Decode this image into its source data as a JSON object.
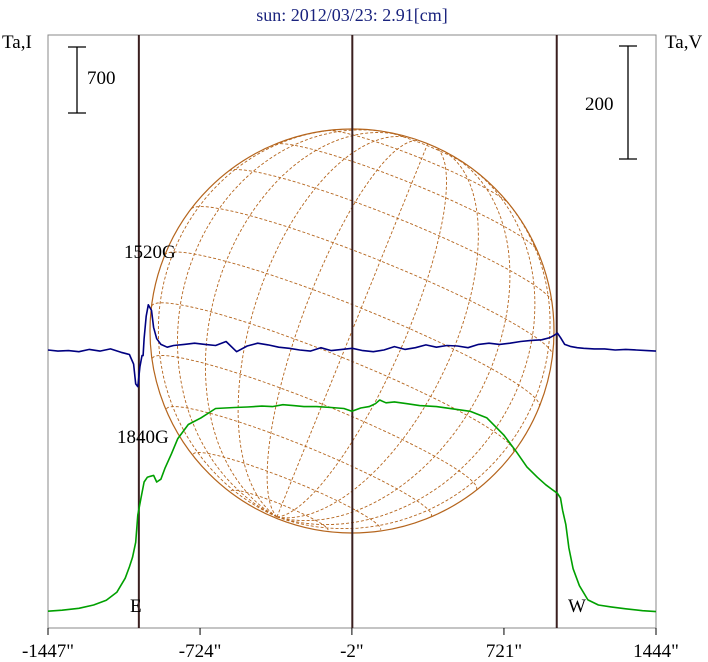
{
  "chart_data": {
    "type": "line",
    "title": "sun: 2012/03/23: 2.91[cm]",
    "ylabel_left": "Ta,I",
    "ylabel_right": "Ta,V",
    "x_ticks": [
      "-1447\"",
      "-724\"",
      "-2\"",
      "721\"",
      "1444\""
    ],
    "x_tick_values": [
      -1447,
      -724,
      -2,
      721,
      1444
    ],
    "xlim": [
      -1447,
      1444
    ],
    "scale_bar_I": "700",
    "scale_bar_V": "200",
    "limb_labels": {
      "east": "E",
      "west": "W"
    },
    "limb_x": [
      -1015,
      0,
      972
    ],
    "annotations": [
      "1520G",
      "1840G"
    ],
    "grid": false,
    "series": [
      {
        "name": "I",
        "color": "#00a000",
        "x": [
          -1447,
          -1380,
          -1300,
          -1230,
          -1170,
          -1120,
          -1080,
          -1060,
          -1045,
          -1030,
          -1020,
          -1005,
          -990,
          -975,
          -960,
          -945,
          -930,
          -910,
          -890,
          -860,
          -830,
          -780,
          -720,
          -650,
          -560,
          -500,
          -430,
          -380,
          -330,
          -280,
          -230,
          -170,
          -100,
          -40,
          -2,
          40,
          80,
          110,
          130,
          160,
          200,
          260,
          320,
          400,
          480,
          560,
          640,
          720,
          780,
          830,
          880,
          920,
          950,
          975,
          990,
          1000,
          1015,
          1030,
          1050,
          1080,
          1120,
          1170,
          1230,
          1300,
          1380,
          1444
        ],
        "values": [
          30,
          40,
          60,
          95,
          145,
          230,
          380,
          500,
          600,
          760,
          1050,
          1230,
          1400,
          1450,
          1460,
          1470,
          1400,
          1430,
          1550,
          1700,
          1860,
          2010,
          2080,
          2180,
          2190,
          2195,
          2205,
          2200,
          2220,
          2210,
          2200,
          2200,
          2190,
          2180,
          2150,
          2185,
          2200,
          2230,
          2270,
          2240,
          2250,
          2230,
          2210,
          2200,
          2175,
          2150,
          2080,
          1900,
          1720,
          1560,
          1450,
          1370,
          1320,
          1280,
          1230,
          1100,
          950,
          700,
          480,
          300,
          150,
          95,
          75,
          55,
          35,
          25
        ]
      },
      {
        "name": "V",
        "color": "#000080",
        "x": [
          -1447,
          -1400,
          -1350,
          -1300,
          -1250,
          -1200,
          -1150,
          -1100,
          -1060,
          -1040,
          -1030,
          -1020,
          -1010,
          -1000,
          -995,
          -990,
          -980,
          -970,
          -955,
          -945,
          -930,
          -910,
          -880,
          -850,
          -800,
          -750,
          -700,
          -650,
          -600,
          -550,
          -500,
          -450,
          -400,
          -350,
          -300,
          -250,
          -200,
          -150,
          -100,
          -50,
          0,
          50,
          100,
          150,
          200,
          250,
          300,
          350,
          400,
          450,
          500,
          550,
          600,
          650,
          700,
          750,
          800,
          850,
          900,
          940,
          960,
          975,
          990,
          1010,
          1040,
          1070,
          1100,
          1150,
          1200,
          1250,
          1300,
          1350,
          1400,
          1444
        ],
        "values": [
          0,
          -2,
          -1,
          -3,
          1,
          -2,
          2,
          -4,
          -8,
          -25,
          -60,
          -65,
          -30,
          -10,
          -10,
          20,
          60,
          80,
          70,
          40,
          20,
          10,
          5,
          8,
          10,
          12,
          10,
          8,
          15,
          -3,
          7,
          12,
          9,
          5,
          3,
          0,
          -2,
          4,
          -1,
          1,
          3,
          -1,
          -3,
          0,
          6,
          1,
          4,
          9,
          5,
          8,
          7,
          4,
          10,
          12,
          10,
          12,
          15,
          17,
          18,
          22,
          26,
          30,
          22,
          10,
          6,
          4,
          3,
          2,
          2,
          0,
          1,
          0,
          -1,
          -2
        ]
      }
    ]
  }
}
